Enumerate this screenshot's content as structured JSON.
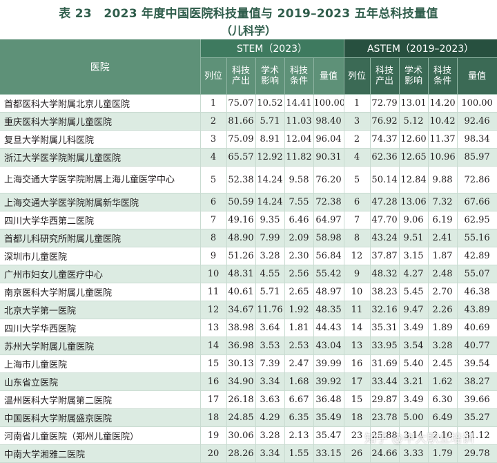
{
  "title": {
    "line1": "表 23　2023 年度中国医院科技量值与 2019–2023 五年总科技量值",
    "line2": "（儿科学）"
  },
  "headers": {
    "hospital": "医院",
    "stem_group": "STEM（2023）",
    "astem_group": "ASTEM（2019–2023）",
    "rank": "列位",
    "output": "科技产出",
    "impact": "学术影响",
    "condition": "科技条件",
    "value": "量值"
  },
  "rows": [
    {
      "hospital": "首都医科大学附属北京儿童医院",
      "s_rank": "1",
      "s_out": "75.07",
      "s_imp": "10.52",
      "s_cond": "14.41",
      "s_val": "100.00",
      "a_rank": "1",
      "a_out": "72.79",
      "a_imp": "13.01",
      "a_cond": "14.20",
      "a_val": "100.00"
    },
    {
      "hospital": "重庆医科大学附属儿童医院",
      "s_rank": "2",
      "s_out": "81.66",
      "s_imp": "5.71",
      "s_cond": "11.03",
      "s_val": "98.40",
      "a_rank": "3",
      "a_out": "76.92",
      "a_imp": "5.12",
      "a_cond": "10.42",
      "a_val": "92.46"
    },
    {
      "hospital": "复旦大学附属儿科医院",
      "s_rank": "3",
      "s_out": "75.09",
      "s_imp": "8.91",
      "s_cond": "12.04",
      "s_val": "96.04",
      "a_rank": "2",
      "a_out": "74.37",
      "a_imp": "12.60",
      "a_cond": "11.37",
      "a_val": "98.34"
    },
    {
      "hospital": "浙江大学医学院附属儿童医院",
      "s_rank": "4",
      "s_out": "65.57",
      "s_imp": "12.92",
      "s_cond": "11.82",
      "s_val": "90.31",
      "a_rank": "4",
      "a_out": "62.36",
      "a_imp": "12.65",
      "a_cond": "10.96",
      "a_val": "85.97"
    },
    {
      "hospital": "上海交通大学医学院附属上海儿童医学中心",
      "s_rank": "5",
      "s_out": "52.38",
      "s_imp": "14.24",
      "s_cond": "9.58",
      "s_val": "76.20",
      "a_rank": "5",
      "a_out": "50.14",
      "a_imp": "12.84",
      "a_cond": "9.88",
      "a_val": "72.86"
    },
    {
      "hospital": "上海交通大学医学院附属新华医院",
      "s_rank": "6",
      "s_out": "50.59",
      "s_imp": "14.24",
      "s_cond": "7.55",
      "s_val": "72.38",
      "a_rank": "6",
      "a_out": "47.28",
      "a_imp": "13.06",
      "a_cond": "7.32",
      "a_val": "67.66"
    },
    {
      "hospital": "四川大学华西第二医院",
      "s_rank": "7",
      "s_out": "49.16",
      "s_imp": "9.35",
      "s_cond": "6.46",
      "s_val": "64.97",
      "a_rank": "7",
      "a_out": "47.70",
      "a_imp": "9.06",
      "a_cond": "6.19",
      "a_val": "62.95"
    },
    {
      "hospital": "首都儿科研究所附属儿童医院",
      "s_rank": "8",
      "s_out": "48.90",
      "s_imp": "7.99",
      "s_cond": "2.09",
      "s_val": "58.98",
      "a_rank": "8",
      "a_out": "43.24",
      "a_imp": "9.51",
      "a_cond": "2.41",
      "a_val": "55.16"
    },
    {
      "hospital": "深圳市儿童医院",
      "s_rank": "9",
      "s_out": "51.26",
      "s_imp": "3.28",
      "s_cond": "2.30",
      "s_val": "56.84",
      "a_rank": "12",
      "a_out": "37.87",
      "a_imp": "3.15",
      "a_cond": "1.87",
      "a_val": "42.89"
    },
    {
      "hospital": "广州市妇女儿童医疗中心",
      "s_rank": "10",
      "s_out": "48.31",
      "s_imp": "4.55",
      "s_cond": "2.56",
      "s_val": "55.42",
      "a_rank": "9",
      "a_out": "48.32",
      "a_imp": "4.27",
      "a_cond": "2.48",
      "a_val": "55.07"
    },
    {
      "hospital": "南京医科大学附属儿童医院",
      "s_rank": "11",
      "s_out": "40.61",
      "s_imp": "5.71",
      "s_cond": "2.65",
      "s_val": "48.97",
      "a_rank": "10",
      "a_out": "38.23",
      "a_imp": "5.45",
      "a_cond": "2.70",
      "a_val": "46.38"
    },
    {
      "hospital": "北京大学第一医院",
      "s_rank": "12",
      "s_out": "34.67",
      "s_imp": "11.76",
      "s_cond": "1.92",
      "s_val": "48.35",
      "a_rank": "11",
      "a_out": "32.16",
      "a_imp": "9.47",
      "a_cond": "2.26",
      "a_val": "43.89"
    },
    {
      "hospital": "四川大学华西医院",
      "s_rank": "13",
      "s_out": "38.98",
      "s_imp": "3.64",
      "s_cond": "1.81",
      "s_val": "44.43",
      "a_rank": "14",
      "a_out": "35.31",
      "a_imp": "3.49",
      "a_cond": "1.89",
      "a_val": "40.69"
    },
    {
      "hospital": "苏州大学附属儿童医院",
      "s_rank": "14",
      "s_out": "36.98",
      "s_imp": "3.53",
      "s_cond": "2.53",
      "s_val": "43.04",
      "a_rank": "13",
      "a_out": "33.95",
      "a_imp": "3.54",
      "a_cond": "3.28",
      "a_val": "40.77"
    },
    {
      "hospital": "上海市儿童医院",
      "s_rank": "15",
      "s_out": "30.13",
      "s_imp": "7.39",
      "s_cond": "2.47",
      "s_val": "39.99",
      "a_rank": "16",
      "a_out": "31.69",
      "a_imp": "5.40",
      "a_cond": "2.45",
      "a_val": "39.54"
    },
    {
      "hospital": "山东省立医院",
      "s_rank": "16",
      "s_out": "34.90",
      "s_imp": "3.34",
      "s_cond": "1.68",
      "s_val": "39.92",
      "a_rank": "17",
      "a_out": "33.44",
      "a_imp": "3.21",
      "a_cond": "1.62",
      "a_val": "38.27"
    },
    {
      "hospital": "温州医科大学附属第二医院",
      "s_rank": "17",
      "s_out": "26.18",
      "s_imp": "3.63",
      "s_cond": "6.67",
      "s_val": "36.48",
      "a_rank": "15",
      "a_out": "29.87",
      "a_imp": "3.49",
      "a_cond": "6.30",
      "a_val": "39.66"
    },
    {
      "hospital": "中国医科大学附属盛京医院",
      "s_rank": "18",
      "s_out": "24.85",
      "s_imp": "4.29",
      "s_cond": "6.35",
      "s_val": "35.49",
      "a_rank": "18",
      "a_out": "23.78",
      "a_imp": "5.00",
      "a_cond": "6.49",
      "a_val": "35.27"
    },
    {
      "hospital": "河南省儿童医院（郑州儿童医院）",
      "s_rank": "19",
      "s_out": "30.06",
      "s_imp": "3.28",
      "s_cond": "2.13",
      "s_val": "35.47",
      "a_rank": "23",
      "a_out": "25.88",
      "a_imp": "3.14",
      "a_cond": "2.10",
      "a_val": "31.12"
    },
    {
      "hospital": "中南大学湘雅二医院",
      "s_rank": "20",
      "s_out": "28.26",
      "s_imp": "3.34",
      "s_cond": "1.55",
      "s_val": "33.15",
      "a_rank": "26",
      "a_out": "24.66",
      "a_imp": "3.33",
      "a_cond": "1.79",
      "a_val": "29.78"
    }
  ],
  "watermark": "知乎 @中大职业培训",
  "colors": {
    "title": "#2f5d4b",
    "header_light": "#5e9178",
    "header_stem": "#3e7a5f",
    "header_astem": "#27503f",
    "row_alt": "#dcebe2"
  }
}
